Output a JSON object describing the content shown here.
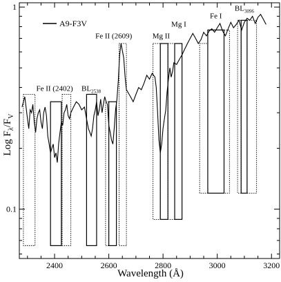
{
  "chart_data": {
    "type": "line",
    "ylabel_main": "Log F",
    "ylabel_sub1": "λ",
    "ylabel_mid": "/F",
    "ylabel_sub2": "V",
    "xlabel": "Wavelength (Å)",
    "xlim": [
      2270,
      3230
    ],
    "ylim": [
      0.057,
      1.05
    ],
    "yscale": "log",
    "x_ticks": [
      2400,
      2600,
      2800,
      3000,
      3200
    ],
    "y_ticks": [
      {
        "value": 0.1,
        "label": "0.1"
      },
      {
        "value": 1,
        "label": "1"
      }
    ],
    "legend": {
      "label": "A9-F3V",
      "position": "top-left"
    },
    "series": [
      {
        "name": "A9-F3V",
        "x": [
          2280,
          2290,
          2300,
          2305,
          2310,
          2315,
          2320,
          2325,
          2330,
          2335,
          2340,
          2345,
          2350,
          2355,
          2360,
          2365,
          2370,
          2375,
          2380,
          2385,
          2390,
          2395,
          2400,
          2405,
          2410,
          2415,
          2420,
          2425,
          2430,
          2435,
          2440,
          2445,
          2450,
          2455,
          2460,
          2470,
          2480,
          2490,
          2500,
          2510,
          2520,
          2525,
          2530,
          2535,
          2540,
          2545,
          2550,
          2555,
          2560,
          2565,
          2570,
          2575,
          2580,
          2585,
          2590,
          2595,
          2600,
          2605,
          2610,
          2615,
          2620,
          2625,
          2630,
          2635,
          2640,
          2645,
          2650,
          2655,
          2660,
          2665,
          2670,
          2680,
          2690,
          2700,
          2710,
          2720,
          2730,
          2740,
          2750,
          2760,
          2770,
          2775,
          2780,
          2785,
          2790,
          2795,
          2800,
          2805,
          2810,
          2815,
          2820,
          2825,
          2830,
          2835,
          2840,
          2850,
          2860,
          2870,
          2880,
          2890,
          2900,
          2910,
          2920,
          2930,
          2940,
          2950,
          2960,
          2970,
          2980,
          2990,
          3000,
          3010,
          3020,
          3030,
          3040,
          3050,
          3060,
          3070,
          3080,
          3090,
          3100,
          3110,
          3120,
          3130,
          3140,
          3150,
          3160,
          3170,
          3180
        ],
        "y": [
          0.32,
          0.36,
          0.28,
          0.25,
          0.31,
          0.3,
          0.33,
          0.27,
          0.24,
          0.28,
          0.3,
          0.31,
          0.27,
          0.25,
          0.3,
          0.32,
          0.29,
          0.23,
          0.21,
          0.19,
          0.2,
          0.21,
          0.18,
          0.19,
          0.17,
          0.21,
          0.24,
          0.27,
          0.26,
          0.3,
          0.31,
          0.33,
          0.29,
          0.28,
          0.3,
          0.32,
          0.34,
          0.33,
          0.31,
          0.32,
          0.27,
          0.25,
          0.24,
          0.23,
          0.25,
          0.29,
          0.31,
          0.34,
          0.29,
          0.31,
          0.35,
          0.3,
          0.33,
          0.36,
          0.34,
          0.33,
          0.26,
          0.24,
          0.22,
          0.21,
          0.25,
          0.31,
          0.35,
          0.43,
          0.58,
          0.66,
          0.61,
          0.56,
          0.45,
          0.39,
          0.38,
          0.36,
          0.34,
          0.37,
          0.4,
          0.39,
          0.42,
          0.46,
          0.44,
          0.47,
          0.45,
          0.4,
          0.3,
          0.22,
          0.19,
          0.21,
          0.25,
          0.28,
          0.31,
          0.38,
          0.44,
          0.5,
          0.45,
          0.48,
          0.53,
          0.52,
          0.55,
          0.58,
          0.62,
          0.66,
          0.7,
          0.74,
          0.7,
          0.66,
          0.69,
          0.75,
          0.72,
          0.76,
          0.78,
          0.75,
          0.79,
          0.83,
          0.76,
          0.72,
          0.78,
          0.84,
          0.79,
          0.82,
          0.86,
          0.77,
          0.84,
          0.88,
          0.86,
          0.9,
          0.83,
          0.89,
          0.92,
          0.87,
          0.82
        ]
      }
    ],
    "feature_boxes": [
      {
        "x0": 2285,
        "x1": 2328,
        "y0": 0.066,
        "y1": 0.37,
        "style": "dotted"
      },
      {
        "x0": 2385,
        "x1": 2425,
        "y0": 0.066,
        "y1": 0.34,
        "style": "solid"
      },
      {
        "x0": 2428,
        "x1": 2460,
        "y0": 0.066,
        "y1": 0.37,
        "style": "dotted"
      },
      {
        "x0": 2518,
        "x1": 2555,
        "y0": 0.066,
        "y1": 0.37,
        "style": "solid"
      },
      {
        "x0": 2588,
        "x1": 2600,
        "y0": 0.066,
        "y1": 0.34,
        "style": "dotted"
      },
      {
        "x0": 2600,
        "x1": 2628,
        "y0": 0.066,
        "y1": 0.34,
        "style": "solid"
      },
      {
        "x0": 2638,
        "x1": 2665,
        "y0": 0.066,
        "y1": 0.66,
        "style": "dotted"
      },
      {
        "x0": 2763,
        "x1": 2790,
        "y0": 0.089,
        "y1": 0.66,
        "style": "dotted"
      },
      {
        "x0": 2790,
        "x1": 2818,
        "y0": 0.089,
        "y1": 0.66,
        "style": "solid"
      },
      {
        "x0": 2818,
        "x1": 2843,
        "y0": 0.089,
        "y1": 0.66,
        "style": "dotted"
      },
      {
        "x0": 2843,
        "x1": 2870,
        "y0": 0.089,
        "y1": 0.66,
        "style": "solid"
      },
      {
        "x0": 2935,
        "x1": 2965,
        "y0": 0.12,
        "y1": 0.66,
        "style": "dotted"
      },
      {
        "x0": 2965,
        "x1": 3025,
        "y0": 0.12,
        "y1": 0.77,
        "style": "solid"
      },
      {
        "x0": 3025,
        "x1": 3045,
        "y0": 0.12,
        "y1": 0.77,
        "style": "dotted"
      },
      {
        "x0": 3075,
        "x1": 3088,
        "y0": 0.12,
        "y1": 0.86,
        "style": "dotted"
      },
      {
        "x0": 3088,
        "x1": 3110,
        "y0": 0.12,
        "y1": 0.86,
        "style": "solid"
      },
      {
        "x0": 3110,
        "x1": 3145,
        "y0": 0.12,
        "y1": 0.86,
        "style": "dotted"
      }
    ],
    "annotations": [
      {
        "text": "Fe II (2402)",
        "x": 2400,
        "y": 0.385
      },
      {
        "text": "BL",
        "sub": "2538",
        "x": 2535,
        "y": 0.385
      },
      {
        "text": "Fe II (2609)",
        "x": 2618,
        "y": 0.7
      },
      {
        "text": "Mg II",
        "x": 2793,
        "y": 0.7
      },
      {
        "text": "Mg I",
        "x": 2858,
        "y": 0.8
      },
      {
        "text": "Fe I",
        "x": 2995,
        "y": 0.88
      },
      {
        "text": "BL",
        "sub": "3096",
        "x": 3100,
        "y": 0.96
      }
    ]
  }
}
